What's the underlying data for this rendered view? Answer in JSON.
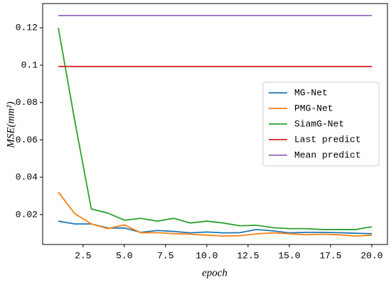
{
  "chart_data": {
    "type": "line",
    "xlabel": "epoch",
    "ylabel": "MSE(mm²)",
    "x": [
      1,
      2,
      3,
      4,
      5,
      6,
      7,
      8,
      9,
      10,
      11,
      12,
      13,
      14,
      15,
      16,
      17,
      18,
      19,
      20
    ],
    "series": [
      {
        "name": "MG-Net",
        "color": "#1f77b4",
        "values": [
          0.0165,
          0.015,
          0.015,
          0.0128,
          0.0128,
          0.0105,
          0.0115,
          0.011,
          0.0102,
          0.0107,
          0.0102,
          0.0103,
          0.012,
          0.0113,
          0.0102,
          0.0105,
          0.0105,
          0.0103,
          0.01,
          0.0098
        ]
      },
      {
        "name": "PMG-Net",
        "color": "#ff7f0e",
        "values": [
          0.032,
          0.0205,
          0.015,
          0.0125,
          0.0145,
          0.0103,
          0.0103,
          0.0098,
          0.0095,
          0.009,
          0.0085,
          0.0087,
          0.0097,
          0.0102,
          0.0098,
          0.0092,
          0.0095,
          0.0092,
          0.0085,
          0.009
        ]
      },
      {
        "name": "SiamG-Net",
        "color": "#2ca02c",
        "values": [
          0.12,
          0.07,
          0.023,
          0.0208,
          0.017,
          0.018,
          0.0165,
          0.018,
          0.0155,
          0.0165,
          0.0155,
          0.014,
          0.0143,
          0.013,
          0.0125,
          0.0125,
          0.012,
          0.012,
          0.012,
          0.0135
        ]
      },
      {
        "name": "Last predict",
        "color": "#d62728",
        "values": [
          0.0993,
          0.0993,
          0.0993,
          0.0993,
          0.0993,
          0.0993,
          0.0993,
          0.0993,
          0.0993,
          0.0993,
          0.0993,
          0.0993,
          0.0993,
          0.0993,
          0.0993,
          0.0993,
          0.0993,
          0.0993,
          0.0993,
          0.0993
        ]
      },
      {
        "name": "Mean predict",
        "color": "#9467bd",
        "values": [
          0.1266,
          0.1266,
          0.1266,
          0.1266,
          0.1266,
          0.1266,
          0.1266,
          0.1266,
          0.1266,
          0.1266,
          0.1266,
          0.1266,
          0.1266,
          0.1266,
          0.1266,
          0.1266,
          0.1266,
          0.1266,
          0.1266,
          0.1266
        ]
      }
    ],
    "xlim": [
      0.05,
      20.95
    ],
    "xticks": [
      2.5,
      {
        "value": 5,
        "label": "5.0"
      },
      7.5,
      {
        "value": 10,
        "label": "10.0"
      },
      12.5,
      {
        "value": 15,
        "label": "15.0"
      },
      17.5,
      {
        "value": 20,
        "label": "20.0"
      }
    ],
    "ylim": [
      0.004,
      0.133
    ],
    "yticks": [
      0.02,
      0.04,
      0.06,
      0.08,
      0.1,
      0.12
    ],
    "legend": "center right",
    "grid": false
  }
}
